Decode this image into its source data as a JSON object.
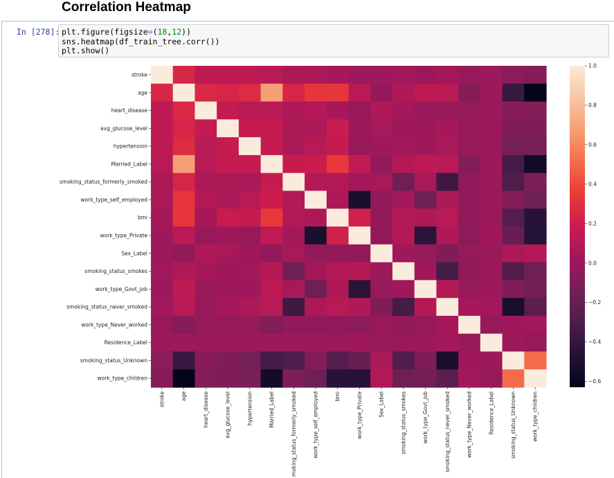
{
  "heading": "Correlation Heatmap",
  "cell": {
    "prompt": "In [278]:",
    "code": {
      "line1": {
        "pre": "plt.figure(figsize",
        "op": "=",
        "open": "(",
        "n1": "18",
        "comma": ",",
        "n2": "12",
        "close": "))"
      },
      "line2": "sns.heatmap(df_train_tree.corr())",
      "line3": "plt.show()"
    }
  },
  "chart_data": {
    "type": "heatmap",
    "title": "",
    "labels": [
      "stroke",
      "age",
      "heart_disease",
      "avg_glucose_level",
      "hypertension",
      "Married_Label",
      "smoking_status_formerly_smoked",
      "work_type_self_employed",
      "bmi",
      "work_type_Private",
      "Sex_Label",
      "smoking_status_smokes",
      "work_type_Govt_job",
      "smoking_status_never_smoked",
      "work_type_Never_worked",
      "Residence_Label",
      "smoking_status_Unknown",
      "work_type_children"
    ],
    "matrix": [
      [
        1.0,
        0.25,
        0.13,
        0.13,
        0.13,
        0.11,
        0.07,
        0.06,
        0.04,
        0.01,
        0.01,
        0.03,
        0.0,
        0.03,
        -0.01,
        0.01,
        -0.06,
        -0.08
      ],
      [
        0.25,
        1.0,
        0.26,
        0.24,
        0.28,
        0.68,
        0.24,
        0.33,
        0.33,
        0.12,
        -0.03,
        0.08,
        0.13,
        0.12,
        -0.08,
        0.01,
        -0.38,
        -0.63
      ],
      [
        0.13,
        0.26,
        1.0,
        0.16,
        0.11,
        0.11,
        0.07,
        0.09,
        0.04,
        -0.01,
        0.08,
        0.04,
        0.0,
        -0.02,
        -0.02,
        0.0,
        -0.07,
        -0.09
      ],
      [
        0.13,
        0.24,
        0.16,
        1.0,
        0.17,
        0.16,
        0.07,
        0.06,
        0.18,
        0.01,
        0.05,
        0.02,
        0.01,
        0.04,
        -0.01,
        0.0,
        -0.1,
        -0.1
      ],
      [
        0.13,
        0.28,
        0.11,
        0.17,
        1.0,
        0.16,
        0.06,
        0.11,
        0.16,
        -0.01,
        0.02,
        0.03,
        0.02,
        0.06,
        -0.02,
        0.0,
        -0.14,
        -0.13
      ],
      [
        0.11,
        0.68,
        0.11,
        0.16,
        0.16,
        1.0,
        0.17,
        0.19,
        0.34,
        0.15,
        -0.03,
        0.1,
        0.13,
        0.11,
        -0.09,
        0.01,
        -0.33,
        -0.55
      ],
      [
        0.07,
        0.24,
        0.07,
        0.07,
        0.06,
        0.17,
        1.0,
        0.09,
        0.09,
        0.03,
        0.05,
        -0.17,
        0.05,
        -0.36,
        -0.03,
        0.01,
        -0.3,
        -0.11
      ],
      [
        0.06,
        0.33,
        0.09,
        0.06,
        0.11,
        0.19,
        0.09,
        1.0,
        0.07,
        -0.51,
        -0.03,
        0.03,
        -0.17,
        0.06,
        -0.03,
        0.01,
        -0.08,
        -0.17
      ],
      [
        0.04,
        0.33,
        0.04,
        0.18,
        0.16,
        0.34,
        0.09,
        0.07,
        1.0,
        0.21,
        -0.03,
        0.09,
        0.08,
        0.11,
        -0.03,
        0.0,
        -0.27,
        -0.45
      ],
      [
        0.01,
        0.12,
        -0.01,
        0.01,
        -0.01,
        0.15,
        0.03,
        -0.51,
        0.21,
        1.0,
        -0.03,
        0.1,
        -0.44,
        0.08,
        -0.06,
        0.02,
        -0.2,
        -0.46
      ],
      [
        0.01,
        -0.03,
        0.08,
        0.05,
        0.02,
        -0.03,
        0.05,
        -0.03,
        -0.03,
        -0.03,
        1.0,
        0.01,
        -0.02,
        -0.1,
        -0.01,
        -0.01,
        0.06,
        0.09
      ],
      [
        0.03,
        0.08,
        0.04,
        0.02,
        0.03,
        0.1,
        -0.17,
        0.03,
        0.09,
        0.1,
        0.01,
        1.0,
        0.02,
        -0.33,
        -0.03,
        0.0,
        -0.28,
        -0.17
      ],
      [
        0.0,
        0.13,
        0.0,
        0.01,
        0.02,
        0.13,
        0.05,
        -0.17,
        0.08,
        -0.44,
        -0.02,
        0.02,
        1.0,
        0.1,
        -0.02,
        0.01,
        -0.1,
        -0.15
      ],
      [
        0.03,
        0.12,
        -0.02,
        0.04,
        0.06,
        0.11,
        -0.36,
        0.06,
        0.11,
        0.08,
        -0.1,
        -0.33,
        0.1,
        1.0,
        0.04,
        0.03,
        -0.52,
        -0.25
      ],
      [
        -0.01,
        -0.08,
        -0.02,
        -0.01,
        -0.02,
        -0.09,
        -0.03,
        -0.03,
        -0.03,
        -0.06,
        -0.01,
        -0.03,
        -0.02,
        0.04,
        1.0,
        -0.02,
        0.02,
        0.03
      ],
      [
        0.01,
        0.01,
        0.0,
        0.0,
        0.0,
        0.01,
        0.01,
        0.01,
        0.0,
        0.02,
        -0.01,
        0.0,
        0.01,
        0.03,
        -0.02,
        1.0,
        0.01,
        -0.01
      ],
      [
        -0.06,
        -0.38,
        -0.07,
        -0.1,
        -0.14,
        -0.33,
        -0.3,
        -0.08,
        -0.27,
        -0.2,
        0.06,
        -0.28,
        -0.1,
        -0.52,
        0.02,
        0.01,
        1.0,
        0.51
      ],
      [
        -0.08,
        -0.63,
        -0.09,
        -0.1,
        -0.13,
        -0.55,
        -0.11,
        -0.17,
        -0.45,
        -0.46,
        0.09,
        -0.17,
        -0.15,
        -0.25,
        0.03,
        -0.01,
        0.51,
        1.0
      ]
    ],
    "vmin": -0.63,
    "vmax": 1.0,
    "colormap": "rocket",
    "colorbar_ticks": [
      "1.0",
      "0.8",
      "0.6",
      "0.4",
      "0.2",
      "0.0",
      "−0.2",
      "−0.4",
      "−0.6"
    ],
    "colorbar_tick_values": [
      1.0,
      0.8,
      0.6,
      0.4,
      0.2,
      0.0,
      -0.2,
      -0.4,
      -0.6
    ]
  }
}
